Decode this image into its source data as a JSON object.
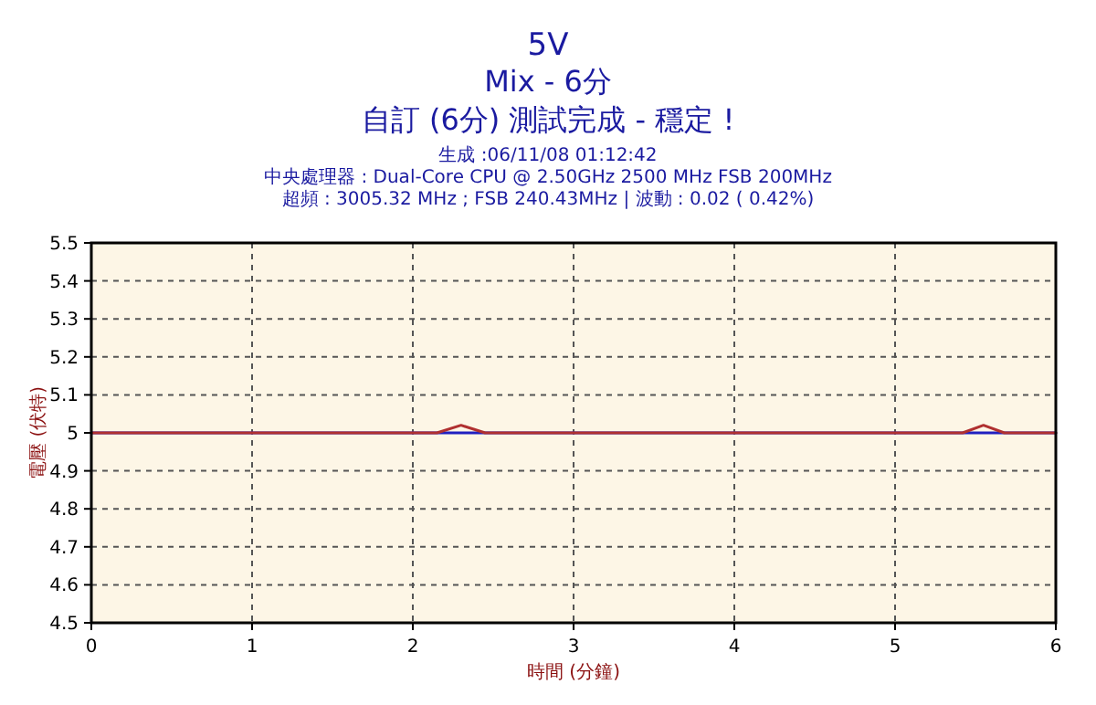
{
  "chart_data": {
    "type": "line",
    "title": "5V",
    "subtitle": "Mix - 6分",
    "annotations": [
      "自訂 (6分) 測試完成 - 穩定 !",
      "生成 :06/11/08 01:12:42",
      "中央處理器 : Dual-Core CPU @ 2.50GHz 2500 MHz FSB 200MHz",
      "超頻 : 3005.32 MHz ; FSB 240.43MHz | 波動 : 0.02 ( 0.42%)"
    ],
    "xlabel": "時間 (分鐘)",
    "ylabel": "電壓 (伏特)",
    "series": [
      {
        "color": "#2020c0",
        "x": [
          0,
          6
        ],
        "values": [
          5.0,
          5.0
        ]
      },
      {
        "color": "#b03030",
        "x": [
          0,
          2.15,
          2.3,
          2.45,
          5.42,
          5.55,
          5.68,
          6
        ],
        "values": [
          5.0,
          5.0,
          5.02,
          5.0,
          5.0,
          5.02,
          5.0,
          5.0
        ]
      }
    ],
    "xlim": [
      0,
      6
    ],
    "xticks": [
      0,
      1,
      2,
      3,
      4,
      5,
      6
    ],
    "ylim": [
      4.5,
      5.5
    ],
    "yticks": [
      4.5,
      4.6,
      4.7,
      4.8,
      4.9,
      5,
      5.1,
      5.2,
      5.3,
      5.4,
      5.5
    ],
    "grid": true,
    "line_style": "solid"
  }
}
